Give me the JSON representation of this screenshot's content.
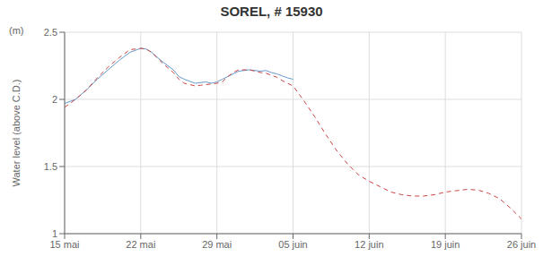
{
  "chart_data": {
    "type": "line",
    "title": "SOREL, # 15930",
    "ylabel": "Water level (above C.D.)",
    "annotations": [
      "(m)"
    ],
    "xlim": [
      0,
      42
    ],
    "xticks": [
      {
        "value": 0,
        "label": "15 mai"
      },
      {
        "value": 7,
        "label": "22 mai"
      },
      {
        "value": 14,
        "label": "29 mai"
      },
      {
        "value": 21,
        "label": "05 juin"
      },
      {
        "value": 28,
        "label": "12 juin"
      },
      {
        "value": 35,
        "label": "19 juin"
      },
      {
        "value": 42,
        "label": "26 juin"
      }
    ],
    "ylim": [
      1.0,
      2.5
    ],
    "yticks": [
      1,
      1.5,
      2,
      2.5
    ],
    "grid": true,
    "series": [
      {
        "color": "#6699cc",
        "line_style": "solid",
        "x": [
          0,
          0.5,
          1,
          2,
          3,
          4,
          5,
          6,
          7,
          7.5,
          8,
          9,
          10,
          10.5,
          11,
          12,
          13,
          13.5,
          14,
          14.5,
          15,
          15.5,
          16,
          17,
          18,
          18.5,
          19,
          19.5,
          20,
          20.5,
          21
        ],
        "values": [
          1.97,
          1.985,
          2.0,
          2.07,
          2.15,
          2.22,
          2.29,
          2.35,
          2.38,
          2.375,
          2.35,
          2.28,
          2.22,
          2.17,
          2.15,
          2.12,
          2.13,
          2.12,
          2.13,
          2.15,
          2.17,
          2.19,
          2.21,
          2.22,
          2.21,
          2.215,
          2.2,
          2.19,
          2.175,
          2.16,
          2.15
        ]
      },
      {
        "color": "#cc4444",
        "line_style": "dashed",
        "x": [
          0,
          0.5,
          1,
          2,
          3,
          4,
          5,
          6,
          7,
          7.5,
          8,
          9,
          10,
          10.5,
          11,
          12,
          12.5,
          13,
          13.5,
          14,
          14.5,
          15,
          15.5,
          16,
          17,
          18,
          18.5,
          19,
          19.5,
          20,
          20.5,
          21,
          22,
          23,
          24,
          25,
          26,
          27,
          28,
          29,
          30,
          31,
          32,
          33,
          34,
          35,
          35.5,
          36,
          37,
          38,
          39,
          40,
          41,
          42
        ],
        "values": [
          1.94,
          1.97,
          2.0,
          2.07,
          2.16,
          2.24,
          2.31,
          2.37,
          2.38,
          2.375,
          2.35,
          2.27,
          2.2,
          2.15,
          2.12,
          2.1,
          2.105,
          2.11,
          2.115,
          2.12,
          2.13,
          2.17,
          2.2,
          2.22,
          2.22,
          2.2,
          2.195,
          2.18,
          2.165,
          2.14,
          2.12,
          2.1,
          1.99,
          1.87,
          1.74,
          1.62,
          1.52,
          1.44,
          1.39,
          1.35,
          1.31,
          1.29,
          1.28,
          1.28,
          1.29,
          1.31,
          1.315,
          1.32,
          1.33,
          1.325,
          1.3,
          1.26,
          1.19,
          1.11
        ]
      }
    ]
  }
}
